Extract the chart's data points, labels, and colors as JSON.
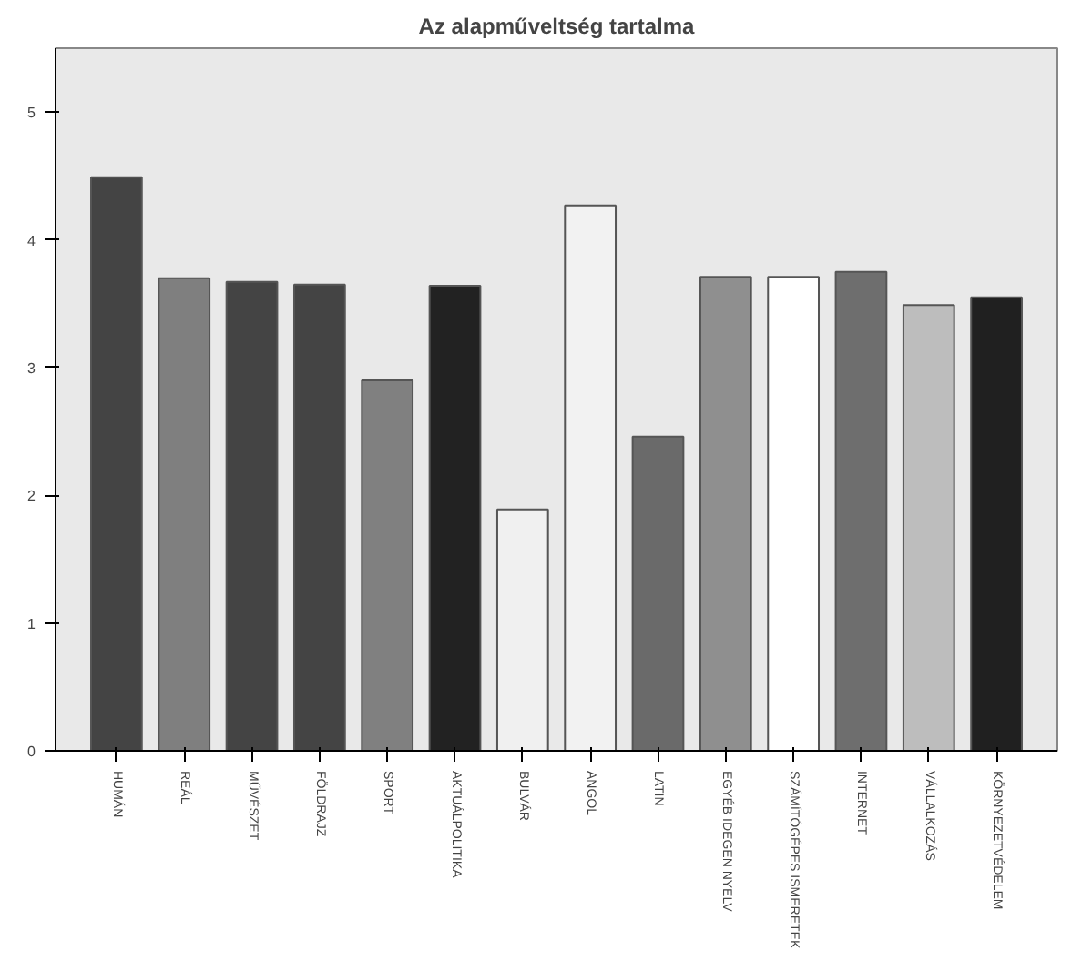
{
  "chart_data": {
    "type": "bar",
    "title": "Az alapműveltség tartalma",
    "categories": [
      "HUMÁN",
      "REÁL",
      "MŰVÉSZET",
      "FÖLDRAJZ",
      "SPORT",
      "AKTUÁLPOLITIKA",
      "BULVÁR",
      "ANGOL",
      "LATIN",
      "EGYÉB IDEGEN NYELV",
      "SZÁMÍTÓGÉPES ISMERETEK",
      "INTERNET",
      "VÁLLALKOZÁS",
      "KÖRNYEZETVÉDELEM"
    ],
    "values": [
      4.49,
      3.7,
      3.67,
      3.65,
      2.9,
      3.64,
      1.89,
      4.27,
      2.46,
      3.71,
      3.71,
      3.75,
      3.49,
      3.55
    ],
    "colors": [
      "#444444",
      "#7f7f7f",
      "#444444",
      "#444444",
      "#808080",
      "#222222",
      "#f0f0f0",
      "#f2f2f2",
      "#6a6a6a",
      "#8f8f8f",
      "#ffffff",
      "#6e6e6e",
      "#bdbdbd",
      "#202020"
    ],
    "ylim": [
      0,
      5.5
    ],
    "yticks": [
      0,
      1,
      2,
      3,
      4,
      5
    ],
    "grid": false
  }
}
